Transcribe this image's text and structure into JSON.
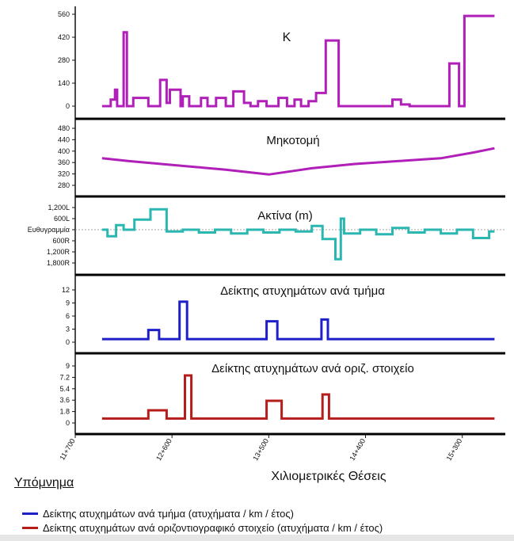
{
  "chart_data": [
    {
      "type": "line",
      "title": "K",
      "color": "#b01fb8",
      "ylim": [
        0,
        560
      ],
      "yticks": [
        "560",
        "420",
        "280",
        "140",
        "0"
      ],
      "ytick_values": [
        560,
        420,
        280,
        140,
        0
      ],
      "x": [
        11.95,
        12.03,
        12.03,
        12.07,
        12.07,
        12.09,
        12.09,
        12.15,
        12.15,
        12.18,
        12.18,
        12.24,
        12.24,
        12.38,
        12.38,
        12.49,
        12.49,
        12.55,
        12.55,
        12.58,
        12.58,
        12.68,
        12.68,
        12.7,
        12.7,
        12.76,
        12.76,
        12.87,
        12.87,
        12.93,
        12.93,
        13.01,
        13.01,
        13.1,
        13.1,
        13.17,
        13.17,
        13.27,
        13.27,
        13.33,
        13.33,
        13.4,
        13.4,
        13.48,
        13.48,
        13.59,
        13.59,
        13.67,
        13.67,
        13.74,
        13.74,
        13.8,
        13.8,
        13.87,
        13.87,
        13.94,
        13.94,
        14.03,
        14.03,
        14.15,
        14.15,
        14.65,
        14.65,
        14.73,
        14.73,
        14.81,
        14.81,
        14.99,
        14.99,
        15.18,
        15.18,
        15.27,
        15.27,
        15.32,
        15.32,
        15.6
      ],
      "y": [
        0,
        0,
        40,
        40,
        100,
        100,
        0,
        0,
        450,
        450,
        0,
        0,
        50,
        50,
        0,
        0,
        160,
        160,
        20,
        20,
        100,
        100,
        0,
        0,
        60,
        60,
        0,
        0,
        50,
        50,
        0,
        0,
        50,
        50,
        0,
        0,
        90,
        90,
        20,
        20,
        0,
        0,
        30,
        30,
        0,
        0,
        50,
        50,
        0,
        0,
        40,
        40,
        0,
        0,
        30,
        30,
        80,
        80,
        400,
        400,
        0,
        0,
        40,
        40,
        10,
        10,
        0,
        0,
        0,
        0,
        260,
        260,
        0,
        0,
        550,
        550
      ],
      "xrange": [
        11.7,
        15.7
      ]
    },
    {
      "type": "line",
      "title": "Μηκοτομή",
      "color": "#b01fb8",
      "ylim": [
        280,
        480
      ],
      "yticks": [
        "480",
        "440",
        "400",
        "360",
        "320",
        "280"
      ],
      "ytick_values": [
        480,
        440,
        400,
        360,
        320,
        280
      ],
      "x": [
        11.95,
        12.2,
        12.5,
        12.8,
        13.1,
        13.5,
        13.9,
        14.3,
        14.7,
        15.1,
        15.4,
        15.6
      ],
      "y": [
        375,
        365,
        355,
        345,
        335,
        318,
        340,
        355,
        365,
        375,
        395,
        410
      ],
      "xrange": [
        11.7,
        15.7
      ]
    },
    {
      "type": "line",
      "title": "Ακτίνα (m)",
      "color": "#2ab7b2",
      "ylim": [
        -1800,
        1200
      ],
      "yticks": [
        "1,200L",
        "600L",
        "Ευθυγραμμία",
        "600R",
        "1,200R",
        "1,800R"
      ],
      "ytick_values": [
        1200,
        600,
        0,
        -600,
        -1200,
        -1800
      ],
      "x": [
        11.95,
        12.0,
        12.0,
        12.08,
        12.08,
        12.15,
        12.15,
        12.25,
        12.25,
        12.4,
        12.4,
        12.55,
        12.55,
        12.7,
        12.7,
        12.85,
        12.85,
        13.0,
        13.0,
        13.15,
        13.15,
        13.3,
        13.3,
        13.45,
        13.45,
        13.6,
        13.6,
        13.75,
        13.75,
        13.9,
        13.9,
        14.0,
        14.0,
        14.12,
        14.12,
        14.17,
        14.17,
        14.2,
        14.2,
        14.35,
        14.35,
        14.5,
        14.5,
        14.65,
        14.65,
        14.8,
        14.8,
        14.95,
        14.95,
        15.1,
        15.1,
        15.25,
        15.25,
        15.4,
        15.4,
        15.55,
        15.55,
        15.6
      ],
      "y": [
        0,
        0,
        -350,
        -350,
        250,
        250,
        0,
        0,
        550,
        550,
        1100,
        1100,
        -100,
        -100,
        0,
        0,
        -150,
        -150,
        0,
        0,
        -200,
        -200,
        0,
        0,
        -150,
        -150,
        0,
        0,
        -100,
        -100,
        200,
        200,
        -500,
        -500,
        -1600,
        -1600,
        600,
        600,
        -200,
        -200,
        0,
        0,
        -250,
        -250,
        100,
        100,
        -150,
        -150,
        0,
        0,
        -200,
        -200,
        0,
        0,
        -450,
        -450,
        -100,
        -100
      ],
      "xrange": [
        11.7,
        15.7
      ]
    },
    {
      "type": "line",
      "title": "Δείκτης ατυχημάτων ανά τμήμα",
      "color": "#1f1fc9",
      "ylim": [
        0,
        12
      ],
      "yticks": [
        "12",
        "9",
        "6",
        "3",
        "0"
      ],
      "ytick_values": [
        12,
        9,
        6,
        3,
        0
      ],
      "x": [
        11.95,
        12.38,
        12.38,
        12.48,
        12.48,
        12.67,
        12.67,
        12.74,
        12.74,
        12.77,
        12.77,
        13.48,
        13.48,
        13.58,
        13.58,
        13.99,
        13.99,
        14.05,
        14.05,
        14.12,
        14.12,
        15.6
      ],
      "y": [
        0.7,
        0.7,
        2.8,
        2.8,
        0.7,
        0.7,
        9.3,
        9.3,
        0.7,
        0.7,
        0.7,
        0.7,
        4.8,
        4.8,
        0.7,
        0.7,
        5.2,
        5.2,
        0.7,
        0.7,
        0.7,
        0.7
      ],
      "xrange": [
        11.7,
        15.7
      ]
    },
    {
      "type": "line",
      "title": "Δείκτης ατυχημάτων ανά οριζ. στοιχείο",
      "color": "#b51c1c",
      "ylim": [
        0,
        9
      ],
      "yticks": [
        "9",
        "7.2",
        "5.4",
        "3.6",
        "1.8",
        "0"
      ],
      "ytick_values": [
        9,
        7.2,
        5.4,
        3.6,
        1.8,
        0
      ],
      "x": [
        11.95,
        12.38,
        12.38,
        12.55,
        12.55,
        12.72,
        12.72,
        12.78,
        12.78,
        13.48,
        13.48,
        13.62,
        13.62,
        14.0,
        14.0,
        14.06,
        14.06,
        15.6
      ],
      "y": [
        0.7,
        0.7,
        2.0,
        2.0,
        0.7,
        0.7,
        7.5,
        7.5,
        0.7,
        0.7,
        3.5,
        3.5,
        0.7,
        0.7,
        4.5,
        4.5,
        0.7,
        0.7
      ],
      "xrange": [
        11.7,
        15.7
      ]
    }
  ],
  "xaxis": {
    "label": "Χιλιομετρικές Θέσεις",
    "ticks": [
      "11+700",
      "12+600",
      "13+500",
      "14+400",
      "15+300"
    ],
    "tick_values": [
      11.7,
      12.6,
      13.5,
      14.4,
      15.3
    ]
  },
  "legend": {
    "title": "Υπόμνημα",
    "items": [
      {
        "label": "Δείκτης ατυχημάτων ανά τμήμα (ατυχήματα / km / έτος)",
        "color": "#1f1fc9"
      },
      {
        "label": "Δείκτης ατυχημάτων ανά οριζοντιογραφικό στοιχείο (ατυχήματα / km / έτος)",
        "color": "#b51c1c"
      }
    ]
  }
}
